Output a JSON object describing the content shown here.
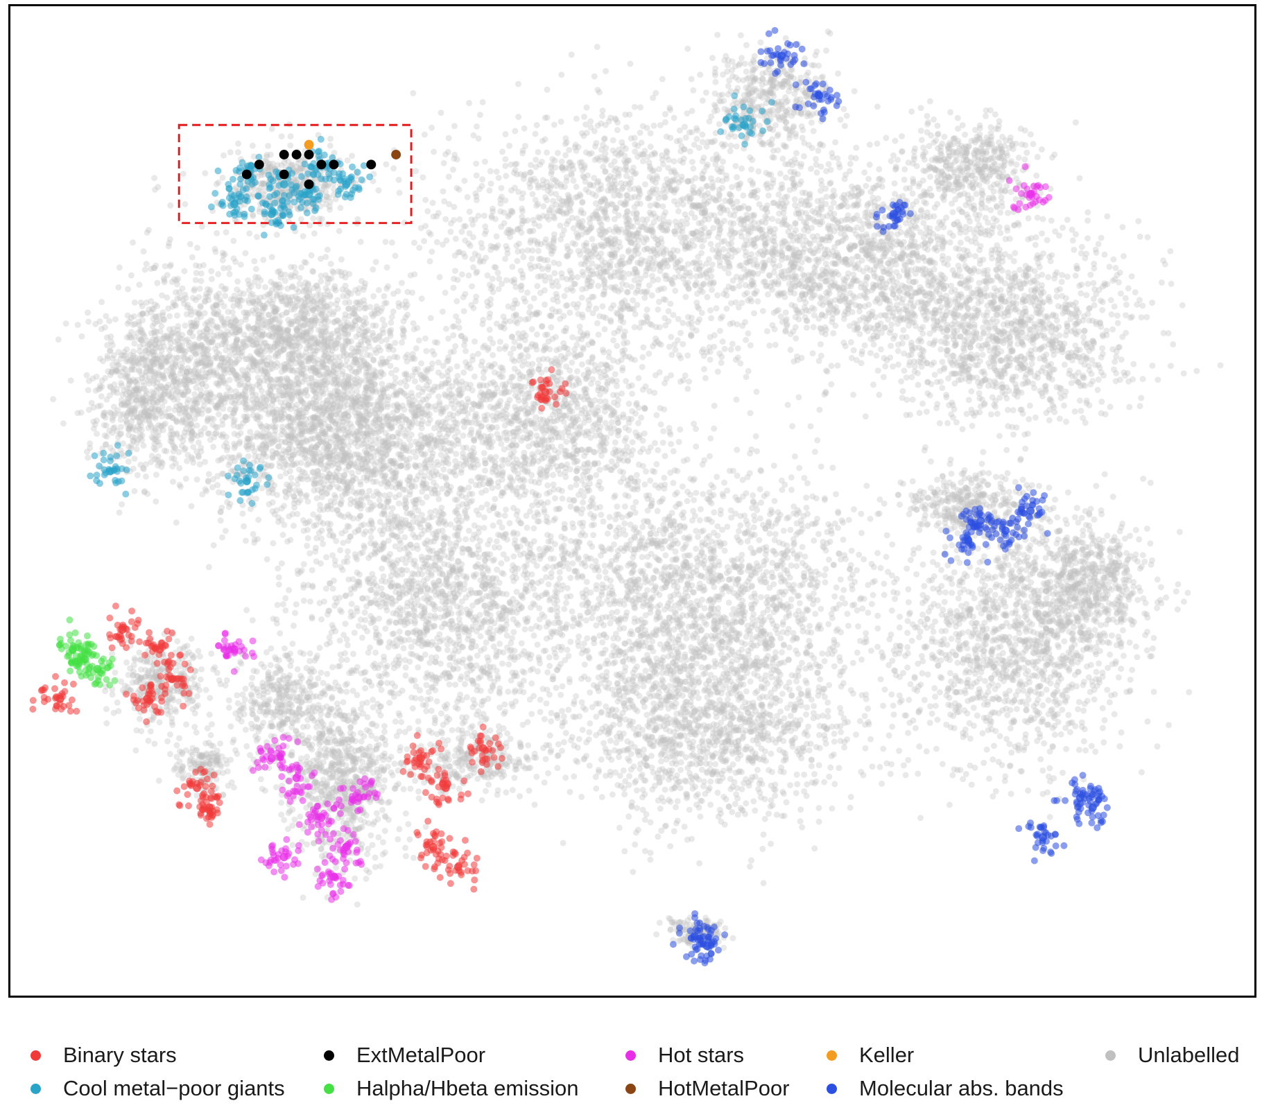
{
  "chart_data": {
    "type": "scatter",
    "title": "",
    "xlabel": "",
    "ylabel": "",
    "axes_visible": false,
    "grid": false,
    "legend_placement": "bottom",
    "highlight_box": {
      "style": "dashed",
      "color": "#e41a1c",
      "encloses": "Cool metal-poor giants / ExtMetalPoor cluster (top-left)"
    },
    "series": [
      {
        "name": "Binary stars",
        "color": "#f03b3b",
        "points": [
          [
            0.12,
            0.65
          ],
          [
            0.13,
            0.68
          ],
          [
            0.11,
            0.7
          ],
          [
            0.15,
            0.79
          ],
          [
            0.16,
            0.81
          ],
          [
            0.35,
            0.79
          ],
          [
            0.34,
            0.85
          ],
          [
            0.36,
            0.87
          ],
          [
            0.33,
            0.76
          ],
          [
            0.43,
            0.39
          ],
          [
            0.38,
            0.75
          ],
          [
            0.04,
            0.7
          ],
          [
            0.09,
            0.63
          ]
        ]
      },
      {
        "name": "Cool metal−poor giants",
        "color": "#29a3c8",
        "points": [
          [
            0.19,
            0.17
          ],
          [
            0.22,
            0.18
          ],
          [
            0.25,
            0.16
          ],
          [
            0.27,
            0.18
          ],
          [
            0.18,
            0.2
          ],
          [
            0.21,
            0.21
          ],
          [
            0.24,
            0.19
          ],
          [
            0.08,
            0.47
          ],
          [
            0.19,
            0.48
          ],
          [
            0.59,
            0.12
          ]
        ]
      },
      {
        "name": "ExtMetalPoor",
        "color": "#000000",
        "points": [
          [
            0.22,
            0.15
          ],
          [
            0.23,
            0.15
          ],
          [
            0.24,
            0.15
          ],
          [
            0.25,
            0.16
          ],
          [
            0.26,
            0.16
          ],
          [
            0.2,
            0.16
          ],
          [
            0.19,
            0.17
          ],
          [
            0.22,
            0.17
          ],
          [
            0.24,
            0.18
          ],
          [
            0.29,
            0.16
          ]
        ]
      },
      {
        "name": "Halpha/Hbeta emission",
        "color": "#44e044",
        "points": [
          [
            0.05,
            0.65
          ],
          [
            0.06,
            0.66
          ],
          [
            0.07,
            0.67
          ]
        ]
      },
      {
        "name": "Hot stars",
        "color": "#e82fe8",
        "points": [
          [
            0.18,
            0.65
          ],
          [
            0.23,
            0.78
          ],
          [
            0.25,
            0.82
          ],
          [
            0.27,
            0.85
          ],
          [
            0.26,
            0.88
          ],
          [
            0.28,
            0.8
          ],
          [
            0.22,
            0.86
          ],
          [
            0.21,
            0.76
          ],
          [
            0.82,
            0.19
          ]
        ]
      },
      {
        "name": "HotMetalPoor",
        "color": "#8b4513",
        "points": [
          [
            0.31,
            0.15
          ]
        ]
      },
      {
        "name": "Keller",
        "color": "#f39c1f",
        "points": [
          [
            0.24,
            0.14
          ]
        ]
      },
      {
        "name": "Molecular abs. bands",
        "color": "#2b4fe0",
        "points": [
          [
            0.77,
            0.54
          ],
          [
            0.78,
            0.52
          ],
          [
            0.8,
            0.53
          ],
          [
            0.82,
            0.51
          ],
          [
            0.86,
            0.8
          ],
          [
            0.87,
            0.81
          ],
          [
            0.55,
            0.94
          ],
          [
            0.56,
            0.95
          ],
          [
            0.62,
            0.05
          ],
          [
            0.65,
            0.09
          ],
          [
            0.71,
            0.21
          ],
          [
            0.83,
            0.84
          ]
        ]
      },
      {
        "name": "Unlabelled",
        "color": "#c0c0c0",
        "points": []
      }
    ]
  },
  "legend": [
    {
      "label": "Binary stars",
      "color": "#f03b3b"
    },
    {
      "label": "ExtMetalPoor",
      "color": "#000000"
    },
    {
      "label": "Hot stars",
      "color": "#e82fe8"
    },
    {
      "label": "Keller",
      "color": "#f39c1f"
    },
    {
      "label": "Unlabelled",
      "color": "#c0c0c0"
    },
    {
      "label": "Cool metal−poor giants",
      "color": "#29a3c8"
    },
    {
      "label": "Halpha/Hbeta emission",
      "color": "#44e044"
    },
    {
      "label": "HotMetalPoor",
      "color": "#8b4513"
    },
    {
      "label": "Molecular abs. bands",
      "color": "#2b4fe0"
    }
  ]
}
